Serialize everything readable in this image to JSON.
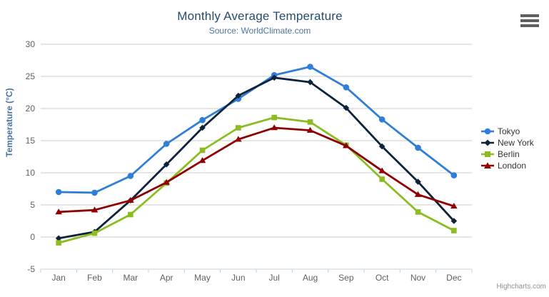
{
  "chart": {
    "title": "Monthly Average Temperature",
    "subtitle": "Source: WorldClimate.com",
    "credits": "Highcharts.com",
    "context_menu_icon": "hamburger-icon"
  },
  "colors": {
    "title": "#274b6d",
    "subtitle": "#4d759e",
    "axis_title": "#4572a7",
    "axis_labels": "#606060",
    "gridline": "#cccccc",
    "axis_line": "#c0d0e0",
    "legend_text": "#333333",
    "credits_text": "#909090"
  },
  "chart_data": {
    "type": "line",
    "title": "Monthly Average Temperature",
    "subtitle": "Source: WorldClimate.com",
    "categories": [
      "Jan",
      "Feb",
      "Mar",
      "Apr",
      "May",
      "Jun",
      "Jul",
      "Aug",
      "Sep",
      "Oct",
      "Nov",
      "Dec"
    ],
    "series": [
      {
        "name": "Tokyo",
        "color": "#2f7ed8",
        "marker": "circle",
        "values": [
          7.0,
          6.9,
          9.5,
          14.5,
          18.2,
          21.5,
          25.2,
          26.5,
          23.3,
          18.3,
          13.9,
          9.6
        ]
      },
      {
        "name": "New York",
        "color": "#0d233a",
        "marker": "diamond",
        "values": [
          -0.2,
          0.8,
          5.7,
          11.3,
          17.0,
          22.0,
          24.8,
          24.1,
          20.1,
          14.1,
          8.6,
          2.5
        ]
      },
      {
        "name": "Berlin",
        "color": "#8bbc21",
        "marker": "square",
        "values": [
          -0.9,
          0.6,
          3.5,
          8.4,
          13.5,
          17.0,
          18.6,
          17.9,
          14.3,
          9.0,
          3.9,
          1.0
        ]
      },
      {
        "name": "London",
        "color": "#910000",
        "marker": "triangle",
        "values": [
          3.9,
          4.2,
          5.7,
          8.5,
          11.9,
          15.2,
          17.0,
          16.6,
          14.2,
          10.3,
          6.6,
          4.8
        ]
      }
    ],
    "xlabel": "",
    "ylabel": "Temperature (°C)",
    "ylim": [
      -5,
      30
    ],
    "ytick_step": 5,
    "grid": true,
    "legend_position": "right"
  }
}
